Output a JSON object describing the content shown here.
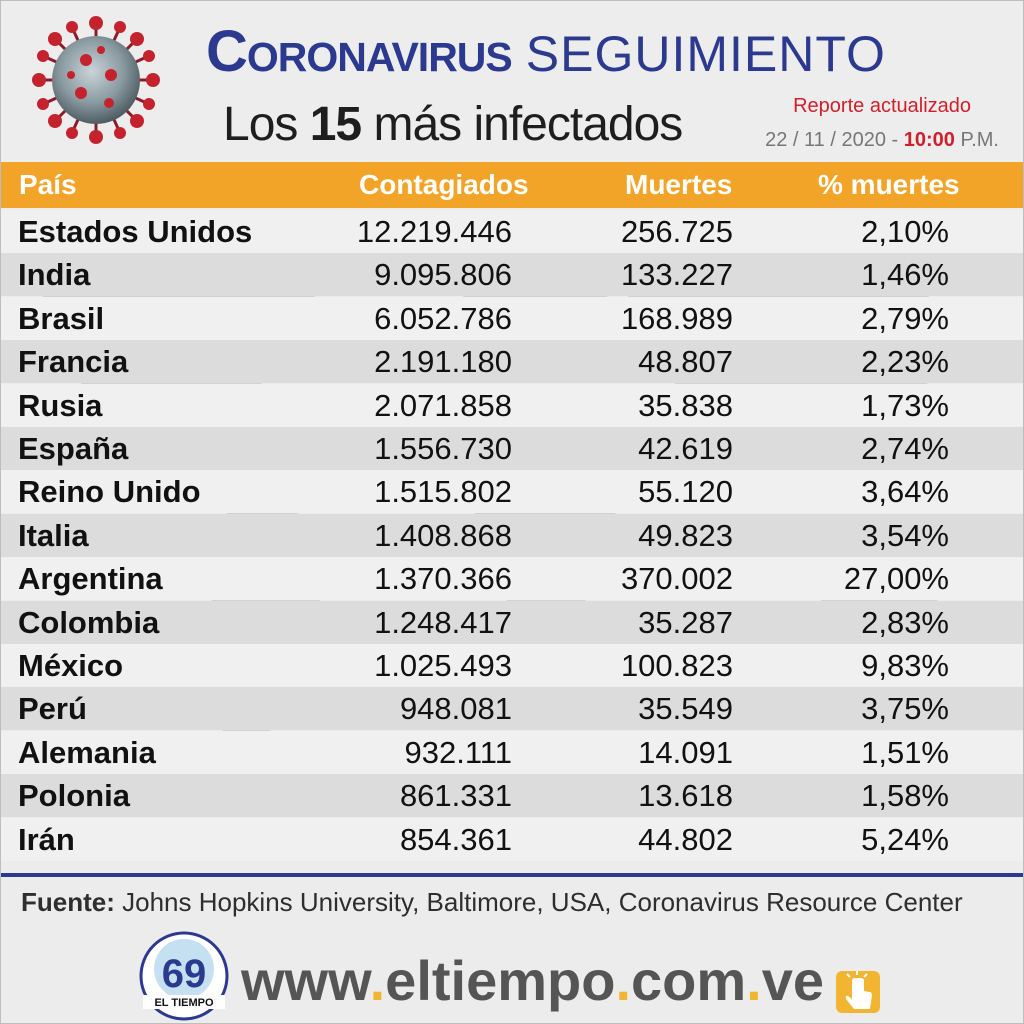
{
  "header": {
    "title_main": "Coronavirus",
    "title_sub": "SEGUIMIENTO",
    "subtitle_prefix": "Los",
    "subtitle_number": "15",
    "subtitle_suffix": "más infectados",
    "report_label": "Reporte actualizado",
    "date": "22 / 11 / 2020 -",
    "time": "10:00",
    "time_suffix": "P.M."
  },
  "table": {
    "headers": [
      "País",
      "Contagiados",
      "Muertes",
      "% muertes"
    ],
    "rows": [
      [
        "Estados Unidos",
        "12.219.446",
        "256.725",
        "2,10%"
      ],
      [
        "India",
        "9.095.806",
        "133.227",
        "1,46%"
      ],
      [
        "Brasil",
        "6.052.786",
        "168.989",
        "2,79%"
      ],
      [
        "Francia",
        "2.191.180",
        "48.807",
        "2,23%"
      ],
      [
        "Rusia",
        "2.071.858",
        "35.838",
        "1,73%"
      ],
      [
        "España",
        "1.556.730",
        "42.619",
        "2,74%"
      ],
      [
        "Reino Unido",
        "1.515.802",
        "55.120",
        "3,64%"
      ],
      [
        "Italia",
        "1.408.868",
        "49.823",
        "3,54%"
      ],
      [
        "Argentina",
        "1.370.366",
        "370.002",
        "27,00%"
      ],
      [
        "Colombia",
        "1.248.417",
        "35.287",
        "2,83%"
      ],
      [
        "México",
        "1.025.493",
        "100.823",
        "9,83%"
      ],
      [
        "Perú",
        "948.081",
        "35.549",
        "3,75%"
      ],
      [
        "Alemania",
        "932.111",
        "14.091",
        "1,51%"
      ],
      [
        "Polonia",
        "861.331",
        "13.618",
        "1,58%"
      ],
      [
        "Irán",
        "854.361",
        "44.802",
        "5,24%"
      ]
    ]
  },
  "footer": {
    "source_label": "Fuente:",
    "source_text": "Johns Hopkins University, Baltimore, USA, Coronavirus Resource Center",
    "logo_number": "69",
    "logo_name": "EL TIEMPO",
    "website_parts": [
      "www",
      ".",
      "eltiempo",
      ".",
      "com",
      ".",
      "ve"
    ]
  },
  "colors": {
    "title_blue": "#2b3a8f",
    "header_orange": "#f2a429",
    "accent_red": "#d01f2a",
    "row_alt": "#dcdcdc"
  },
  "icons": [
    "coronavirus-icon",
    "eltiempo-logo",
    "hand-pointer-icon"
  ]
}
